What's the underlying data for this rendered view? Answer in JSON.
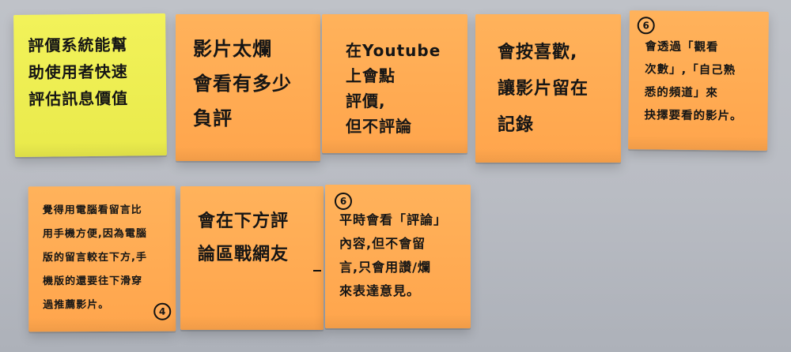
{
  "notes": [
    {
      "id": "n1",
      "color": "#eef05a",
      "text": "評價系統能幫\n助使用者快速\n評估訊息價值"
    },
    {
      "id": "n2",
      "color": "#ffac52",
      "text": "影片太爛\n會看有多少\n負評"
    },
    {
      "id": "n3",
      "color": "#ffac52",
      "text": "在Youtube\n上會點\n評價,\n但不評論"
    },
    {
      "id": "n4",
      "color": "#ffac52",
      "text": "會按喜歡,\n讓影片留在\n記錄"
    },
    {
      "id": "n5",
      "color": "#ffac52",
      "number": "6",
      "text": "會透過「觀看\n次數」,「自己熟\n悉的頻道」來\n抉擇要看的影片。"
    },
    {
      "id": "n6",
      "color": "#ffac52",
      "number": "4",
      "text": "覺得用電腦看留言比\n用手機方便,因為電腦\n版的留言較在下方,手\n機版的還要往下滑穿\n過推薦影片。"
    },
    {
      "id": "n7",
      "color": "#ffac52",
      "text": "會在下方評\n論區戰網友"
    },
    {
      "id": "n8",
      "color": "#ffac52",
      "number": "6",
      "text": "平時會看「評論」\n內容,但不會留\n言,只會用讚/爛\n來表達意見。"
    }
  ]
}
